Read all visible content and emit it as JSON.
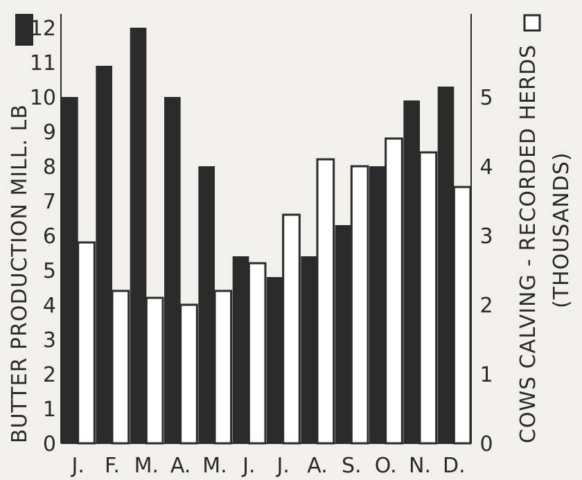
{
  "chart_data": {
    "type": "bar",
    "categories": [
      "J.",
      "F.",
      "M.",
      "A.",
      "M.",
      "J.",
      "J.",
      "A.",
      "S.",
      "O.",
      "N.",
      "D."
    ],
    "series": [
      {
        "axis": "left",
        "color": "#2b2b2b",
        "values": [
          10.0,
          10.9,
          12.0,
          10.0,
          8.0,
          5.4,
          4.8,
          5.4,
          6.3,
          8.0,
          9.9,
          10.3
        ]
      },
      {
        "axis": "right",
        "color": "#ffffff",
        "values": [
          2.9,
          2.2,
          2.1,
          2.0,
          2.2,
          2.6,
          3.3,
          4.1,
          4.0,
          4.4,
          4.2,
          3.7
        ]
      }
    ],
    "ylabel_left": "BUTTER PRODUCTION MILL. LB",
    "ylabel_right": "COWS CALVING - RECORDED HERDS",
    "ylabel_right_sub": "(THOUSANDS)",
    "ylim_left": [
      0,
      12.5
    ],
    "ylim_right": [
      0,
      6.25
    ],
    "yticks_left": [
      "0",
      "1",
      "2",
      "3",
      "4",
      "5",
      "6",
      "7",
      "8",
      "9",
      "10",
      "11",
      "12"
    ],
    "yticks_right": [
      "0",
      "1",
      "2",
      "3",
      "4",
      "5"
    ],
    "legend": "dark square beside left axis title, open square beside right axis title",
    "grid": false
  }
}
